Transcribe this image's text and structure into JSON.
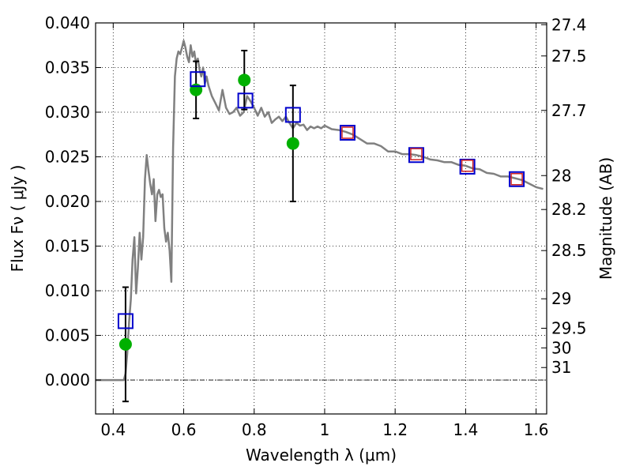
{
  "chart_data": {
    "type": "scatter",
    "xlabel": "Wavelength  λ (μm)",
    "ylabel": "Flux  Fν  ( μJy )",
    "ylabel_right": "Magnitude (AB)",
    "xlim": [
      0.35,
      1.63
    ],
    "ylim": [
      -0.0038,
      0.04
    ],
    "x_ticks": [
      0.4,
      0.6,
      0.8,
      1.0,
      1.2,
      1.4,
      1.6
    ],
    "x_tick_labels": [
      "0.4",
      "0.6",
      "0.8",
      "1",
      "1.2",
      "1.4",
      "1.6"
    ],
    "y_ticks": [
      0.0,
      0.005,
      0.01,
      0.015,
      0.02,
      0.025,
      0.03,
      0.035,
      0.04
    ],
    "y_tick_labels": [
      "0.000",
      "0.005",
      "0.010",
      "0.015",
      "0.020",
      "0.025",
      "0.030",
      "0.035",
      "0.040"
    ],
    "right_ticks": [
      {
        "label": "27.4",
        "flux": 0.0398
      },
      {
        "label": "27.5",
        "flux": 0.0363
      },
      {
        "label": "27.7",
        "flux": 0.0302
      },
      {
        "label": "28",
        "flux": 0.0229
      },
      {
        "label": "28.2",
        "flux": 0.0191
      },
      {
        "label": "28.5",
        "flux": 0.0145
      },
      {
        "label": "29",
        "flux": 0.0091
      },
      {
        "label": "29.5",
        "flux": 0.0058
      },
      {
        "label": "30",
        "flux": 0.0036
      },
      {
        "label": "31",
        "flux": 0.0014
      }
    ],
    "grid": true,
    "zero_line": true,
    "series": [
      {
        "kind": "spectrum",
        "color": "#808080",
        "x": [
          0.35,
          0.42,
          0.43,
          0.435,
          0.44,
          0.445,
          0.45,
          0.455,
          0.46,
          0.465,
          0.47,
          0.475,
          0.48,
          0.485,
          0.49,
          0.495,
          0.5,
          0.505,
          0.51,
          0.515,
          0.52,
          0.525,
          0.53,
          0.535,
          0.54,
          0.545,
          0.55,
          0.555,
          0.56,
          0.565,
          0.57,
          0.575,
          0.58,
          0.585,
          0.59,
          0.595,
          0.6,
          0.605,
          0.61,
          0.615,
          0.62,
          0.625,
          0.63,
          0.635,
          0.64,
          0.645,
          0.65,
          0.655,
          0.66,
          0.665,
          0.67,
          0.68,
          0.69,
          0.7,
          0.71,
          0.72,
          0.73,
          0.74,
          0.75,
          0.76,
          0.77,
          0.78,
          0.79,
          0.8,
          0.81,
          0.82,
          0.83,
          0.84,
          0.85,
          0.86,
          0.87,
          0.88,
          0.89,
          0.9,
          0.91,
          0.92,
          0.93,
          0.94,
          0.95,
          0.96,
          0.97,
          0.98,
          0.99,
          1.0,
          1.02,
          1.04,
          1.06,
          1.08,
          1.1,
          1.12,
          1.14,
          1.16,
          1.18,
          1.2,
          1.22,
          1.24,
          1.26,
          1.28,
          1.3,
          1.32,
          1.34,
          1.36,
          1.38,
          1.4,
          1.42,
          1.44,
          1.46,
          1.48,
          1.5,
          1.52,
          1.54,
          1.56,
          1.58,
          1.6,
          1.62
        ],
        "y": [
          0.0,
          0.0,
          0.0,
          0.0007,
          0.003,
          0.0065,
          0.009,
          0.0135,
          0.016,
          0.0097,
          0.0125,
          0.0165,
          0.0135,
          0.016,
          0.0225,
          0.0252,
          0.0235,
          0.022,
          0.0208,
          0.0225,
          0.0178,
          0.0208,
          0.0213,
          0.0205,
          0.0208,
          0.017,
          0.0155,
          0.0165,
          0.0145,
          0.011,
          0.026,
          0.034,
          0.036,
          0.0368,
          0.0365,
          0.0372,
          0.038,
          0.0372,
          0.0362,
          0.0356,
          0.0375,
          0.0362,
          0.0368,
          0.0355,
          0.036,
          0.0348,
          0.034,
          0.035,
          0.0332,
          0.034,
          0.033,
          0.0318,
          0.031,
          0.0302,
          0.0325,
          0.0305,
          0.0298,
          0.03,
          0.0305,
          0.0296,
          0.03,
          0.0318,
          0.0312,
          0.0305,
          0.0296,
          0.0305,
          0.0295,
          0.03,
          0.0288,
          0.0292,
          0.0295,
          0.029,
          0.0295,
          0.0288,
          0.0282,
          0.0288,
          0.0285,
          0.0286,
          0.028,
          0.0284,
          0.0282,
          0.0284,
          0.0282,
          0.0285,
          0.0281,
          0.028,
          0.0278,
          0.0275,
          0.027,
          0.0265,
          0.0265,
          0.0262,
          0.0256,
          0.0256,
          0.0253,
          0.0253,
          0.0252,
          0.025,
          0.0247,
          0.0246,
          0.0244,
          0.0244,
          0.0241,
          0.024,
          0.0237,
          0.0236,
          0.0232,
          0.0231,
          0.0228,
          0.0228,
          0.0226,
          0.0224,
          0.022,
          0.0216,
          0.0214
        ]
      },
      {
        "kind": "measured",
        "color": "#00b000",
        "x": [
          0.435,
          0.635,
          0.772,
          0.91
        ],
        "y": [
          0.004,
          0.0325,
          0.0336,
          0.0265
        ],
        "err": [
          0.0064,
          0.0032,
          0.0033,
          0.0065
        ]
      },
      {
        "kind": "model-blue",
        "color": "#0000cc",
        "x": [
          0.435,
          0.64,
          0.775,
          0.91,
          1.065,
          1.26,
          1.405,
          1.545
        ],
        "y": [
          0.0066,
          0.0337,
          0.0313,
          0.0297,
          0.0277,
          0.0252,
          0.0239,
          0.0225
        ]
      },
      {
        "kind": "model-red",
        "color": "#cc2222",
        "x": [
          1.065,
          1.26,
          1.405,
          1.545
        ],
        "y": [
          0.0277,
          0.0253,
          0.024,
          0.0225
        ]
      }
    ]
  }
}
